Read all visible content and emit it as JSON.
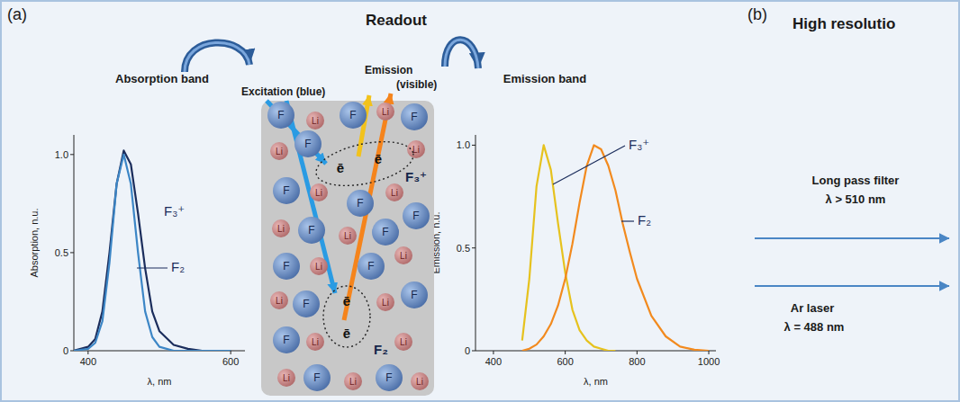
{
  "panels": [
    {
      "label": "(a)",
      "title": "Readout"
    },
    {
      "label": "(b)",
      "title": "High resolutio"
    }
  ],
  "chart_data": [
    {
      "type": "line",
      "title": "Absorption band",
      "x_label": "λ, nm",
      "y_label": "Absorption, n.u.",
      "x": [
        380,
        400,
        410,
        420,
        430,
        440,
        450,
        460,
        470,
        480,
        490,
        500,
        520,
        540,
        560,
        580,
        600
      ],
      "xlim": [
        380,
        620
      ],
      "xticks": [
        400,
        600
      ],
      "ylim": [
        0,
        1.1
      ],
      "yticks": [
        0,
        0.5,
        {
          "value": 1,
          "label": "1.0"
        }
      ],
      "series": [
        {
          "name": "F₃⁺",
          "color": "#1b2d5c",
          "values": [
            0,
            0.02,
            0.06,
            0.2,
            0.5,
            0.85,
            1.02,
            0.95,
            0.7,
            0.42,
            0.2,
            0.1,
            0.03,
            0.01,
            0,
            0,
            0
          ]
        },
        {
          "name": "F₂",
          "color": "#3c86c6",
          "values": [
            0,
            0.01,
            0.04,
            0.15,
            0.45,
            0.85,
            1.0,
            0.85,
            0.5,
            0.2,
            0.07,
            0.02,
            0,
            0,
            0,
            0,
            0
          ]
        }
      ]
    },
    {
      "type": "line",
      "title": "Emission band",
      "x_label": "λ, nm",
      "y_label": "Emission, n.u.",
      "x": [
        400,
        450,
        480,
        500,
        520,
        540,
        560,
        580,
        600,
        620,
        640,
        660,
        680,
        700,
        720,
        740,
        760,
        780,
        800,
        840,
        880,
        920,
        960,
        1000
      ],
      "xlim": [
        350,
        1020
      ],
      "xticks": [
        400,
        600,
        800,
        1000
      ],
      "ylim": [
        0,
        1.05
      ],
      "yticks": [
        0,
        0.5,
        {
          "value": 1,
          "label": "1.0"
        }
      ],
      "series": [
        {
          "name": "F₃⁺",
          "color": "#e6c21e",
          "values": [
            null,
            null,
            0.05,
            0.35,
            0.8,
            1.0,
            0.88,
            0.62,
            0.38,
            0.2,
            0.1,
            0.05,
            0.02,
            0.01,
            0,
            0,
            null,
            null,
            null,
            null,
            null,
            null,
            null,
            null
          ]
        },
        {
          "name": "F₂",
          "color": "#f28a1e",
          "values": [
            null,
            null,
            0,
            0.01,
            0.03,
            0.07,
            0.13,
            0.22,
            0.35,
            0.52,
            0.72,
            0.9,
            1.0,
            0.98,
            0.9,
            0.78,
            0.62,
            0.48,
            0.35,
            0.17,
            0.07,
            0.02,
            0.005,
            0
          ]
        }
      ]
    }
  ],
  "diagram": {
    "excitation_label": "Excitation (blue)",
    "emission_label": "Emission",
    "emission_sub": "(visible)",
    "center_labels": [
      "F₃⁺",
      "F₂"
    ],
    "electrons": [
      "ē",
      "ē",
      "ē",
      "ē"
    ],
    "atoms": [
      "F",
      "Li",
      "F",
      "Li",
      "F",
      "Li",
      "F",
      "Li",
      "F",
      "Li",
      "F",
      "Li",
      "F",
      "Li",
      "F",
      "Li",
      "F",
      "F",
      "Li",
      "F",
      "Li",
      "Li",
      "F",
      "Li",
      "F",
      "F",
      "Li",
      "Li",
      "Li",
      "F",
      "Li",
      "F",
      "Li"
    ]
  },
  "setup": {
    "filter_label": "Long pass filter",
    "filter_spec": "λ > 510 nm",
    "laser_label": "Ar laser",
    "laser_spec": "λ = 488 nm"
  }
}
